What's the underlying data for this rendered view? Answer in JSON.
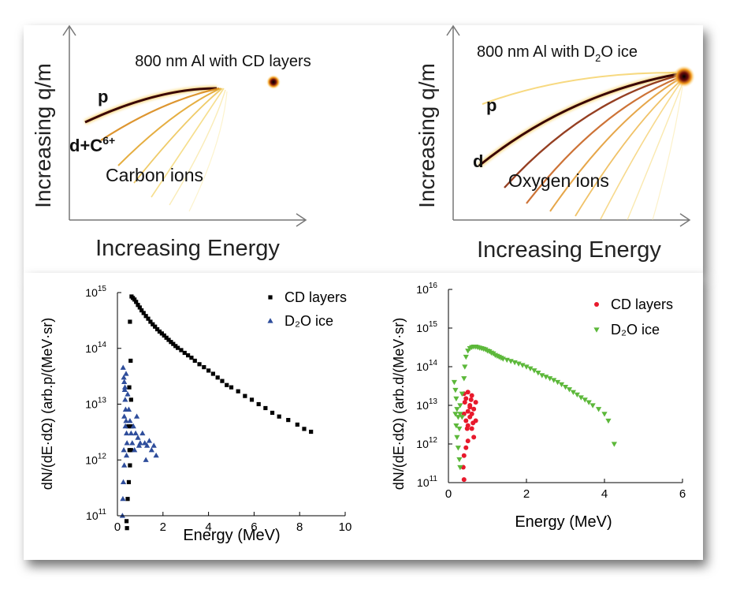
{
  "colors": {
    "cd_series": "#000000",
    "d2o_series_left": "#2e4d9b",
    "cd_series_right": "#e8192c",
    "d2o_series_right": "#5cb83a",
    "trace_core": "#3a0505",
    "trace_glow": "#f2b81c"
  },
  "panels": {
    "top_left": {
      "y_axis_label": "Increasing q/m",
      "x_axis_label": "Increasing Energy",
      "title": "800 nm Al with CD layers",
      "label_p": "p",
      "label_dc": "d+C",
      "label_dc_sup": "6+",
      "label_ions": "Carbon ions"
    },
    "top_right": {
      "y_axis_label": "Increasing q/m",
      "x_axis_label": "Increasing Energy",
      "title_prefix": "800 nm Al with D",
      "title_sub": "2",
      "title_suffix": "O ice",
      "label_p": "p",
      "label_d": "d",
      "label_ions": "Oxygen ions"
    }
  },
  "chart_data": [
    {
      "type": "scatter",
      "id": "proton_spectrum",
      "title": "",
      "xlabel": "Energy (MeV)",
      "ylabel": "dN/(dE·dΩ) (arb.p/(MeV·sr)",
      "xlim": [
        0,
        10
      ],
      "ylim_log10": [
        11,
        15
      ],
      "x_ticks": [
        "0",
        "2",
        "4",
        "6",
        "8",
        "10"
      ],
      "y_tick_exponents": [
        "11",
        "12",
        "13",
        "14",
        "15"
      ],
      "legend_position": "top-right",
      "series": [
        {
          "name": "CD layers",
          "marker": "square",
          "color": "#000000",
          "points": [
            [
              0.62,
              850000000000000.0
            ],
            [
              0.68,
              800000000000000.0
            ],
            [
              0.75,
              750000000000000.0
            ],
            [
              0.82,
              680000000000000.0
            ],
            [
              0.9,
              600000000000000.0
            ],
            [
              0.98,
              540000000000000.0
            ],
            [
              1.06,
              480000000000000.0
            ],
            [
              1.15,
              430000000000000.0
            ],
            [
              1.25,
              380000000000000.0
            ],
            [
              1.35,
              340000000000000.0
            ],
            [
              1.45,
              300000000000000.0
            ],
            [
              1.55,
              270000000000000.0
            ],
            [
              1.65,
              245000000000000.0
            ],
            [
              1.75,
              220000000000000.0
            ],
            [
              1.85,
              200000000000000.0
            ],
            [
              1.95,
              185000000000000.0
            ],
            [
              2.05,
              170000000000000.0
            ],
            [
              2.15,
              155000000000000.0
            ],
            [
              2.25,
              142000000000000.0
            ],
            [
              2.35,
              130000000000000.0
            ],
            [
              2.45,
              120000000000000.0
            ],
            [
              2.55,
              110000000000000.0
            ],
            [
              2.65,
              102000000000000.0
            ],
            [
              2.8,
              93000000000000.0
            ],
            [
              2.95,
              83000000000000.0
            ],
            [
              3.1,
              75000000000000.0
            ],
            [
              3.25,
              68000000000000.0
            ],
            [
              3.4,
              60000000000000.0
            ],
            [
              3.6,
              52000000000000.0
            ],
            [
              3.8,
              46000000000000.0
            ],
            [
              4.0,
              40000000000000.0
            ],
            [
              4.2,
              35000000000000.0
            ],
            [
              4.4,
              30000000000000.0
            ],
            [
              4.6,
              26000000000000.0
            ],
            [
              4.8,
              22000000000000.0
            ],
            [
              5.0,
              20000000000000.0
            ],
            [
              5.3,
              17000000000000.0
            ],
            [
              5.6,
              14000000000000.0
            ],
            [
              5.9,
              12000000000000.0
            ],
            [
              6.2,
              10000000000000.0
            ],
            [
              6.5,
              8500000000000.0
            ],
            [
              6.8,
              7000000000000.0
            ],
            [
              7.1,
              6000000000000.0
            ],
            [
              7.5,
              5200000000000.0
            ],
            [
              7.9,
              4300000000000.0
            ],
            [
              8.2,
              3600000000000.0
            ],
            [
              8.5,
              3200000000000.0
            ],
            [
              0.55,
              300000000000000.0
            ],
            [
              0.58,
              60000000000000.0
            ],
            [
              0.6,
              12000000000000.0
            ],
            [
              0.62,
              4000000000000.0
            ],
            [
              0.6,
              1500000000000.0
            ],
            [
              0.55,
              800000000000.0
            ],
            [
              0.5,
              400000000000.0
            ],
            [
              0.45,
              200000000000.0
            ],
            [
              0.4,
              80000000000.0
            ],
            [
              0.42,
              60000000000.0
            ],
            [
              0.48,
              4000000000000.0
            ],
            [
              0.52,
              20000000000000.0
            ],
            [
              0.53,
              1500000000000.0
            ]
          ]
        },
        {
          "name": "D₂O ice",
          "marker": "triangle-up",
          "color": "#2e4d9b",
          "points": [
            [
              0.25,
              45000000000000.0
            ],
            [
              0.28,
              30000000000000.0
            ],
            [
              0.3,
              25000000000000.0
            ],
            [
              0.32,
              18000000000000.0
            ],
            [
              0.34,
              12000000000000.0
            ],
            [
              0.36,
              8000000000000.0
            ],
            [
              0.38,
              5000000000000.0
            ],
            [
              0.4,
              3000000000000.0
            ],
            [
              0.42,
              2000000000000.0
            ],
            [
              0.28,
              1500000000000.0
            ],
            [
              0.3,
              800000000000.0
            ],
            [
              0.26,
              400000000000.0
            ],
            [
              0.24,
              200000000000.0
            ],
            [
              0.22,
              100000000000.0
            ],
            [
              0.3,
              6000000000000.0
            ],
            [
              0.35,
              4000000000000.0
            ],
            [
              0.45,
              15000000000000.0
            ],
            [
              0.5,
              8000000000000.0
            ],
            [
              0.55,
              5000000000000.0
            ],
            [
              0.6,
              3000000000000.0
            ],
            [
              0.65,
              2000000000000.0
            ],
            [
              0.7,
              4000000000000.0
            ],
            [
              0.8,
              3000000000000.0
            ],
            [
              0.9,
              2500000000000.0
            ],
            [
              1.0,
              2000000000000.0
            ],
            [
              1.1,
              3000000000000.0
            ],
            [
              1.2,
              2000000000000.0
            ],
            [
              1.3,
              1800000000000.0
            ],
            [
              1.4,
              2200000000000.0
            ],
            [
              1.5,
              1500000000000.0
            ],
            [
              1.6,
              1800000000000.0
            ],
            [
              1.7,
              1200000000000.0
            ],
            [
              0.75,
              1500000000000.0
            ],
            [
              0.95,
              1800000000000.0
            ],
            [
              1.25,
              1000000000000.0
            ],
            [
              0.85,
              6000000000000.0
            ],
            [
              0.4,
              1200000000000.0
            ],
            [
              0.33,
              20000000000000.0
            ],
            [
              0.38,
              35000000000000.0
            ]
          ]
        }
      ]
    },
    {
      "type": "scatter",
      "id": "deuteron_spectrum",
      "title": "",
      "xlabel": "Energy (MeV)",
      "ylabel": "dN/(dE·dΩ) (arb.d/(MeV·sr)",
      "xlim": [
        0,
        6
      ],
      "ylim_log10": [
        11,
        16
      ],
      "x_ticks": [
        "0",
        "2",
        "4",
        "6"
      ],
      "y_tick_exponents": [
        "11",
        "12",
        "13",
        "14",
        "15",
        "16"
      ],
      "legend_position": "top-right",
      "series": [
        {
          "name": "CD layers",
          "marker": "circle",
          "color": "#e8192c",
          "points": [
            [
              0.4,
              20000000000000.0
            ],
            [
              0.45,
              15000000000000.0
            ],
            [
              0.5,
              22000000000000.0
            ],
            [
              0.55,
              10000000000000.0
            ],
            [
              0.6,
              18000000000000.0
            ],
            [
              0.65,
              8000000000000.0
            ],
            [
              0.7,
              12000000000000.0
            ],
            [
              0.4,
              6000000000000.0
            ],
            [
              0.45,
              4000000000000.0
            ],
            [
              0.5,
              3000000000000.0
            ],
            [
              0.55,
              5000000000000.0
            ],
            [
              0.6,
              2500000000000.0
            ],
            [
              0.65,
              1500000000000.0
            ],
            [
              0.5,
              1200000000000.0
            ],
            [
              0.45,
              800000000000.0
            ],
            [
              0.4,
              500000000000.0
            ],
            [
              0.38,
              250000000000.0
            ],
            [
              0.4,
              120000000000.0
            ],
            [
              0.55,
              9000000000000.0
            ],
            [
              0.6,
              6000000000000.0
            ],
            [
              0.7,
              4000000000000.0
            ],
            [
              0.5,
              7000000000000.0
            ],
            [
              0.42,
              12000000000000.0
            ],
            [
              0.48,
              2500000000000.0
            ],
            [
              0.58,
              14000000000000.0
            ],
            [
              0.63,
              3500000000000.0
            ]
          ]
        },
        {
          "name": "D₂O ice",
          "marker": "triangle-down",
          "color": "#5cb83a",
          "points": [
            [
              0.15,
              40000000000000.0
            ],
            [
              0.18,
              25000000000000.0
            ],
            [
              0.2,
              15000000000000.0
            ],
            [
              0.22,
              8000000000000.0
            ],
            [
              0.25,
              5000000000000.0
            ],
            [
              0.2,
              3000000000000.0
            ],
            [
              0.22,
              1500000000000.0
            ],
            [
              0.25,
              800000000000.0
            ],
            [
              0.28,
              400000000000.0
            ],
            [
              0.3,
              250000000000.0
            ],
            [
              0.18,
              6000000000000.0
            ],
            [
              0.3,
              10000000000000.0
            ],
            [
              0.35,
              20000000000000.0
            ],
            [
              0.4,
              50000000000000.0
            ],
            [
              0.42,
              100000000000000.0
            ],
            [
              0.45,
              180000000000000.0
            ],
            [
              0.5,
              260000000000000.0
            ],
            [
              0.55,
              300000000000000.0
            ],
            [
              0.6,
              320000000000000.0
            ],
            [
              0.65,
              330000000000000.0
            ],
            [
              0.7,
              330000000000000.0
            ],
            [
              0.75,
              320000000000000.0
            ],
            [
              0.8,
              310000000000000.0
            ],
            [
              0.85,
              300000000000000.0
            ],
            [
              0.9,
              290000000000000.0
            ],
            [
              0.95,
              280000000000000.0
            ],
            [
              1.0,
              260000000000000.0
            ],
            [
              1.05,
              250000000000000.0
            ],
            [
              1.1,
              230000000000000.0
            ],
            [
              1.15,
              220000000000000.0
            ],
            [
              1.2,
              200000000000000.0
            ],
            [
              1.25,
              190000000000000.0
            ],
            [
              1.3,
              180000000000000.0
            ],
            [
              1.35,
              170000000000000.0
            ],
            [
              1.4,
              160000000000000.0
            ],
            [
              1.5,
              150000000000000.0
            ],
            [
              1.6,
              140000000000000.0
            ],
            [
              1.7,
              130000000000000.0
            ],
            [
              1.8,
              120000000000000.0
            ],
            [
              1.9,
              110000000000000.0
            ],
            [
              2.0,
              100000000000000.0
            ],
            [
              2.1,
              90000000000000.0
            ],
            [
              2.2,
              80000000000000.0
            ],
            [
              2.3,
              70000000000000.0
            ],
            [
              2.4,
              60000000000000.0
            ],
            [
              2.5,
              55000000000000.0
            ],
            [
              2.6,
              50000000000000.0
            ],
            [
              2.7,
              45000000000000.0
            ],
            [
              2.8,
              40000000000000.0
            ],
            [
              2.9,
              35000000000000.0
            ],
            [
              3.0,
              30000000000000.0
            ],
            [
              3.1,
              26000000000000.0
            ],
            [
              3.2,
              22000000000000.0
            ],
            [
              3.3,
              19000000000000.0
            ],
            [
              3.4,
              16000000000000.0
            ],
            [
              3.5,
              14000000000000.0
            ],
            [
              3.6,
              12000000000000.0
            ],
            [
              3.7,
              10000000000000.0
            ],
            [
              3.85,
              8000000000000.0
            ],
            [
              4.0,
              6000000000000.0
            ],
            [
              4.1,
              4000000000000.0
            ],
            [
              4.25,
              1000000000000.0
            ],
            [
              0.35,
              5000000000000.0
            ],
            [
              0.28,
              2500000000000.0
            ],
            [
              0.3,
              6000000000000.0
            ]
          ]
        }
      ]
    }
  ]
}
